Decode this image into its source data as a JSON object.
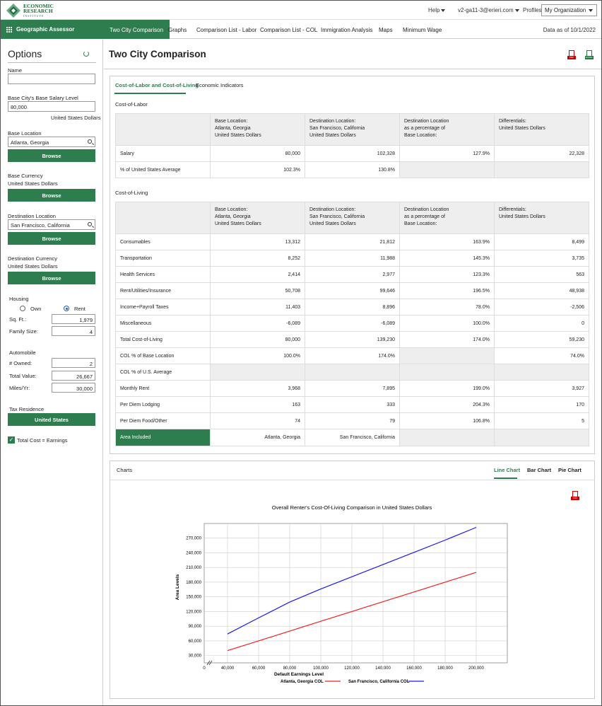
{
  "brand": {
    "line1": "ECONOMIC",
    "line2": "RESEARCH",
    "line3": "INSTITUTE"
  },
  "topbar": {
    "help": "Help",
    "user": "v2-ga11-3@erieri.com",
    "profiles": "Profiles",
    "org": "My Organization"
  },
  "nav": {
    "app": "Geographic Assessor",
    "tabs": [
      "Two City Comparison",
      "Graphs",
      "Comparison List - Labor",
      "Comparison List - COL",
      "Immigration Analysis",
      "Maps",
      "Minimum Wage"
    ],
    "data_as_of": "Data as of 10/1/2022"
  },
  "options": {
    "title": "Options",
    "name_label": "Name",
    "name_value": "",
    "base_salary_label": "Base City's Base Salary Level",
    "base_salary_value": "80,000",
    "base_salary_currency": "United States Dollars",
    "base_location_label": "Base Location",
    "base_location_value": "Atlanta, Georgia",
    "browse": "Browse",
    "base_currency_label": "Base Currency",
    "base_currency_value": "United States Dollars",
    "dest_location_label": "Destination Location",
    "dest_location_value": "San Francisco, California",
    "dest_currency_label": "Destination Currency",
    "dest_currency_value": "United States Dollars",
    "housing_label": "Housing",
    "own": "Own",
    "rent": "Rent",
    "sqft_label": "Sq. Ft.:",
    "sqft_value": "1,979",
    "family_label": "Family Size:",
    "family_value": "4",
    "auto_label": "Automobile",
    "owned_label": "# Owned:",
    "owned_value": "2",
    "total_value_label": "Total Value:",
    "total_value_value": "26,667",
    "miles_label": "Miles/Yr:",
    "miles_value": "30,000",
    "tax_label": "Tax Residence",
    "tax_value": "United States",
    "total_cost_label": "Total Cost = Earnings"
  },
  "page": {
    "title": "Two City Comparison"
  },
  "subtabs": [
    "Cost-of-Labor and Cost-of-Living",
    "Economic Indicators"
  ],
  "labor": {
    "section": "Cost-of-Labor",
    "head": {
      "base_title": "Base Location:",
      "base_city": "Atlanta, Georgia",
      "base_cur": "United States Dollars",
      "dest_title": "Destination Location:",
      "dest_city": "San Francisco, California",
      "dest_cur": "United States Dollars",
      "pct_title1": "Destination Location",
      "pct_title2": "as a percentage of",
      "pct_title3": "Base Location:",
      "diff_title": "Differentials:",
      "diff_cur": "United States Dollars"
    },
    "rows": [
      {
        "label": "Salary",
        "base": "80,000",
        "dest": "102,328",
        "pct": "127.9%",
        "diff": "22,328"
      },
      {
        "label": "% of United States Average",
        "base": "102.3%",
        "dest": "130.8%",
        "pct": "",
        "diff": ""
      }
    ]
  },
  "living": {
    "section": "Cost-of-Living",
    "rows": [
      {
        "label": "Consumables",
        "base": "13,312",
        "dest": "21,812",
        "pct": "163.9%",
        "diff": "8,499"
      },
      {
        "label": "Transportation",
        "base": "8,252",
        "dest": "11,988",
        "pct": "145.3%",
        "diff": "3,735"
      },
      {
        "label": "Health Services",
        "base": "2,414",
        "dest": "2,977",
        "pct": "123.3%",
        "diff": "563"
      },
      {
        "label": "Rent/Utilities/Insurance",
        "base": "50,708",
        "dest": "99,646",
        "pct": "196.5%",
        "diff": "48,938"
      },
      {
        "label": "Income+Payroll Taxes",
        "base": "11,403",
        "dest": "8,896",
        "pct": "78.0%",
        "diff": "-2,506"
      },
      {
        "label": "Miscellaneous",
        "base": "-6,089",
        "dest": "-6,089",
        "pct": "100.0%",
        "diff": "0"
      },
      {
        "label": "Total Cost-of-Living",
        "base": "80,000",
        "dest": "139,230",
        "pct": "174.0%",
        "diff": "59,230"
      },
      {
        "label": "COL % of Base Location",
        "base": "100.0%",
        "dest": "174.0%",
        "pct": "",
        "diff": "74.0%"
      },
      {
        "label": "COL % of U.S. Average",
        "base": "",
        "dest": "",
        "pct": "",
        "diff": ""
      },
      {
        "label": "Monthly Rent",
        "base": "3,968",
        "dest": "7,895",
        "pct": "199.0%",
        "diff": "3,927"
      },
      {
        "label": "Per Diem Lodging",
        "base": "163",
        "dest": "333",
        "pct": "204.3%",
        "diff": "170"
      },
      {
        "label": "Per Diem Food/Other",
        "base": "74",
        "dest": "79",
        "pct": "106.8%",
        "diff": "5"
      },
      {
        "label": "Area Included",
        "base": "Atlanta, Georgia",
        "dest": "San Francisco, California",
        "pct": "",
        "diff": ""
      }
    ]
  },
  "charts": {
    "label": "Charts",
    "tabs": [
      "Line Chart",
      "Bar Chart",
      "Pie Chart"
    ]
  },
  "colors": {
    "accent": "#2e7d4f",
    "atlanta": "#ee2222",
    "sf": "#1a1aee"
  },
  "chart_data": {
    "type": "line",
    "title": "Overall Renter's Cost-Of-Living Comparison in United States Dollars",
    "xlabel": "Default Earnings Level",
    "ylabel": "Area Levels",
    "x": [
      40000,
      60000,
      80000,
      100000,
      120000,
      140000,
      160000,
      180000,
      200000
    ],
    "x_ticks": [
      "0",
      "40,000",
      "60,000",
      "80,000",
      "100,000",
      "120,000",
      "140,000",
      "160,000",
      "180,000",
      "200,000"
    ],
    "y_ticks": [
      "30,000",
      "60,000",
      "90,000",
      "120,000",
      "150,000",
      "180,000",
      "210,000",
      "240,000",
      "270,000"
    ],
    "xlim": [
      25000,
      220000
    ],
    "ylim": [
      15000,
      300000
    ],
    "series": [
      {
        "name": "Atlanta, Georgia COL",
        "values": [
          40000,
          60000,
          80000,
          100000,
          120000,
          140000,
          160000,
          180000,
          200000
        ]
      },
      {
        "name": "San Francisco, California COL",
        "values": [
          74000,
          107000,
          139230,
          166000,
          191000,
          216000,
          241000,
          266000,
          292000
        ]
      }
    ],
    "grid": true,
    "legend": "bottom"
  }
}
